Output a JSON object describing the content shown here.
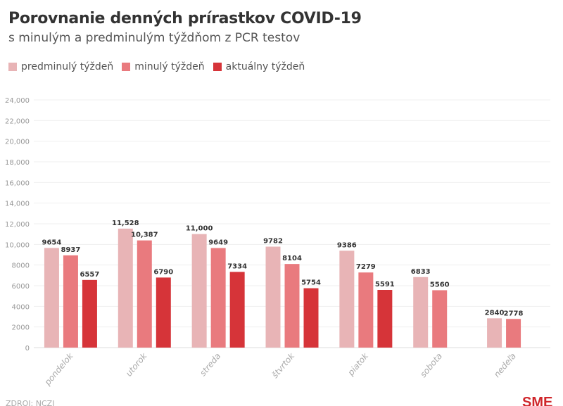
{
  "chart_data": {
    "type": "bar",
    "title": "Porovnanie denných prírastkov COVID-19",
    "subtitle": "s minulým a predminulým týždňom z PCR testov",
    "categories": [
      "pondelok",
      "utorok",
      "streda",
      "štvrtok",
      "piatok",
      "sobota",
      "nedeľa"
    ],
    "series": [
      {
        "name": "predminulý týždeň",
        "color": "#e8b4b6",
        "values": [
          9654,
          11528,
          11000,
          9782,
          9386,
          6833,
          2840
        ],
        "labels": [
          "9654",
          "11,528",
          "11,000",
          "9782",
          "9386",
          "6833",
          "2840"
        ]
      },
      {
        "name": "minulý týždeň",
        "color": "#e97a7e",
        "values": [
          8937,
          10387,
          9649,
          8104,
          7279,
          5560,
          2778
        ],
        "labels": [
          "8937",
          "10,387",
          "9649",
          "8104",
          "7279",
          "5560",
          "2778"
        ]
      },
      {
        "name": "aktuálny týždeň",
        "color": "#d63439",
        "values": [
          6557,
          6790,
          7334,
          5754,
          5591,
          null,
          null
        ],
        "labels": [
          "6557",
          "6790",
          "7334",
          "5754",
          "5591",
          "",
          ""
        ]
      }
    ],
    "ylim": [
      0,
      24000
    ],
    "yticks": [
      0,
      2000,
      4000,
      6000,
      8000,
      10000,
      12000,
      14000,
      16000,
      18000,
      20000,
      22000,
      24000
    ],
    "ytick_labels": [
      "0",
      "2000",
      "4000",
      "6000",
      "8000",
      "10,000",
      "12,000",
      "14,000",
      "16,000",
      "18,000",
      "20,000",
      "22,000",
      "24,000"
    ],
    "xlabel": "",
    "ylabel": "",
    "grid": true,
    "legend": "top-left"
  },
  "source": "ZDROJ: NCZI",
  "logo": "SME"
}
